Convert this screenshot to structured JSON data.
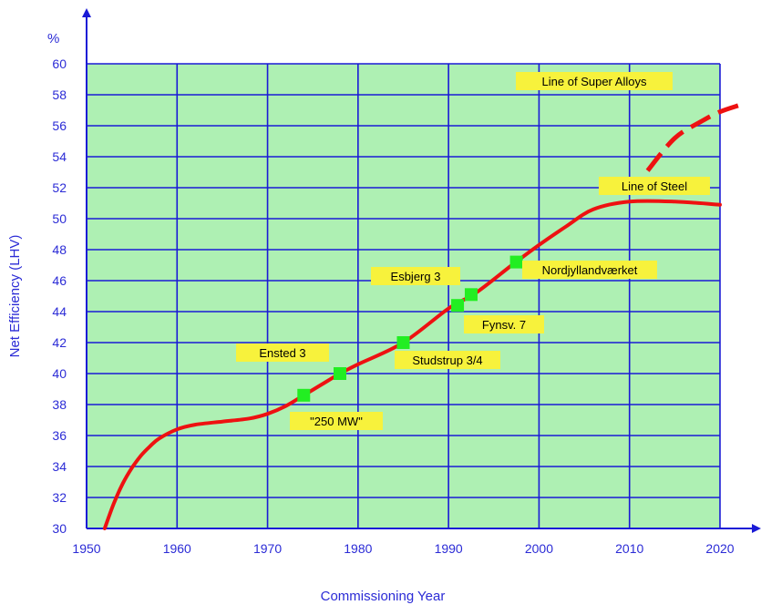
{
  "chart_data": {
    "type": "line",
    "title": "",
    "xlabel": "Commissioning Year",
    "ylabel": "Net Efficiency (LHV)",
    "y_unit_label": "%",
    "xlim": [
      1950,
      2020
    ],
    "ylim": [
      30,
      60
    ],
    "x_ticks": [
      "1950",
      "1960",
      "1970",
      "1980",
      "1990",
      "2000",
      "2010",
      "2020"
    ],
    "y_ticks": [
      "30",
      "32",
      "34",
      "36",
      "38",
      "40",
      "42",
      "44",
      "46",
      "48",
      "50",
      "52",
      "54",
      "56",
      "58",
      "60"
    ],
    "grid": true,
    "series": [
      {
        "name": "Line of Steel",
        "style": "solid",
        "x": [
          1952,
          1953,
          1954,
          1955,
          1956,
          1957,
          1958,
          1960,
          1962,
          1965,
          1968,
          1970,
          1972,
          1974,
          1976,
          1978,
          1980,
          1985,
          1990,
          1993,
          1997,
          2000,
          2003,
          2006,
          2010,
          2015,
          2020
        ],
        "y": [
          30.0,
          31.6,
          32.9,
          33.9,
          34.7,
          35.3,
          35.8,
          36.4,
          36.7,
          36.9,
          37.1,
          37.4,
          37.9,
          38.6,
          39.3,
          40.0,
          40.6,
          42.0,
          44.2,
          45.2,
          47.0,
          48.3,
          49.5,
          50.6,
          51.1,
          51.1,
          50.9
        ]
      },
      {
        "name": "Line of Super Alloys",
        "style": "dashed",
        "x": [
          2012,
          2015,
          2018,
          2020,
          2022
        ],
        "y": [
          53.1,
          55.2,
          56.3,
          56.9,
          57.3
        ]
      }
    ],
    "plants": [
      {
        "label": "\"250 MW\"",
        "x": 1974,
        "y": 38.6
      },
      {
        "label": "Ensted 3",
        "x": 1978,
        "y": 40.0
      },
      {
        "label": "Studstrup 3/4",
        "x": 1985,
        "y": 42.0
      },
      {
        "label": "Esbjerg 3",
        "x": 1991,
        "y": 44.4
      },
      {
        "label": "Fynsv. 7",
        "x": 1992.5,
        "y": 45.1
      },
      {
        "label": "Nordjyllandværket",
        "x": 1997.5,
        "y": 47.2
      }
    ],
    "annotations": [
      {
        "text": "Line of Super Alloys"
      },
      {
        "text": "Line of Steel"
      }
    ],
    "colors": {
      "plot_bg": "#aef0b3",
      "grid": "#1a1ad6",
      "axis": "#1a1ad6",
      "curve": "#ee1111",
      "marker": "#22ee22",
      "label_bg": "#f7f23c",
      "tick_text": "#2b2bd6"
    }
  }
}
